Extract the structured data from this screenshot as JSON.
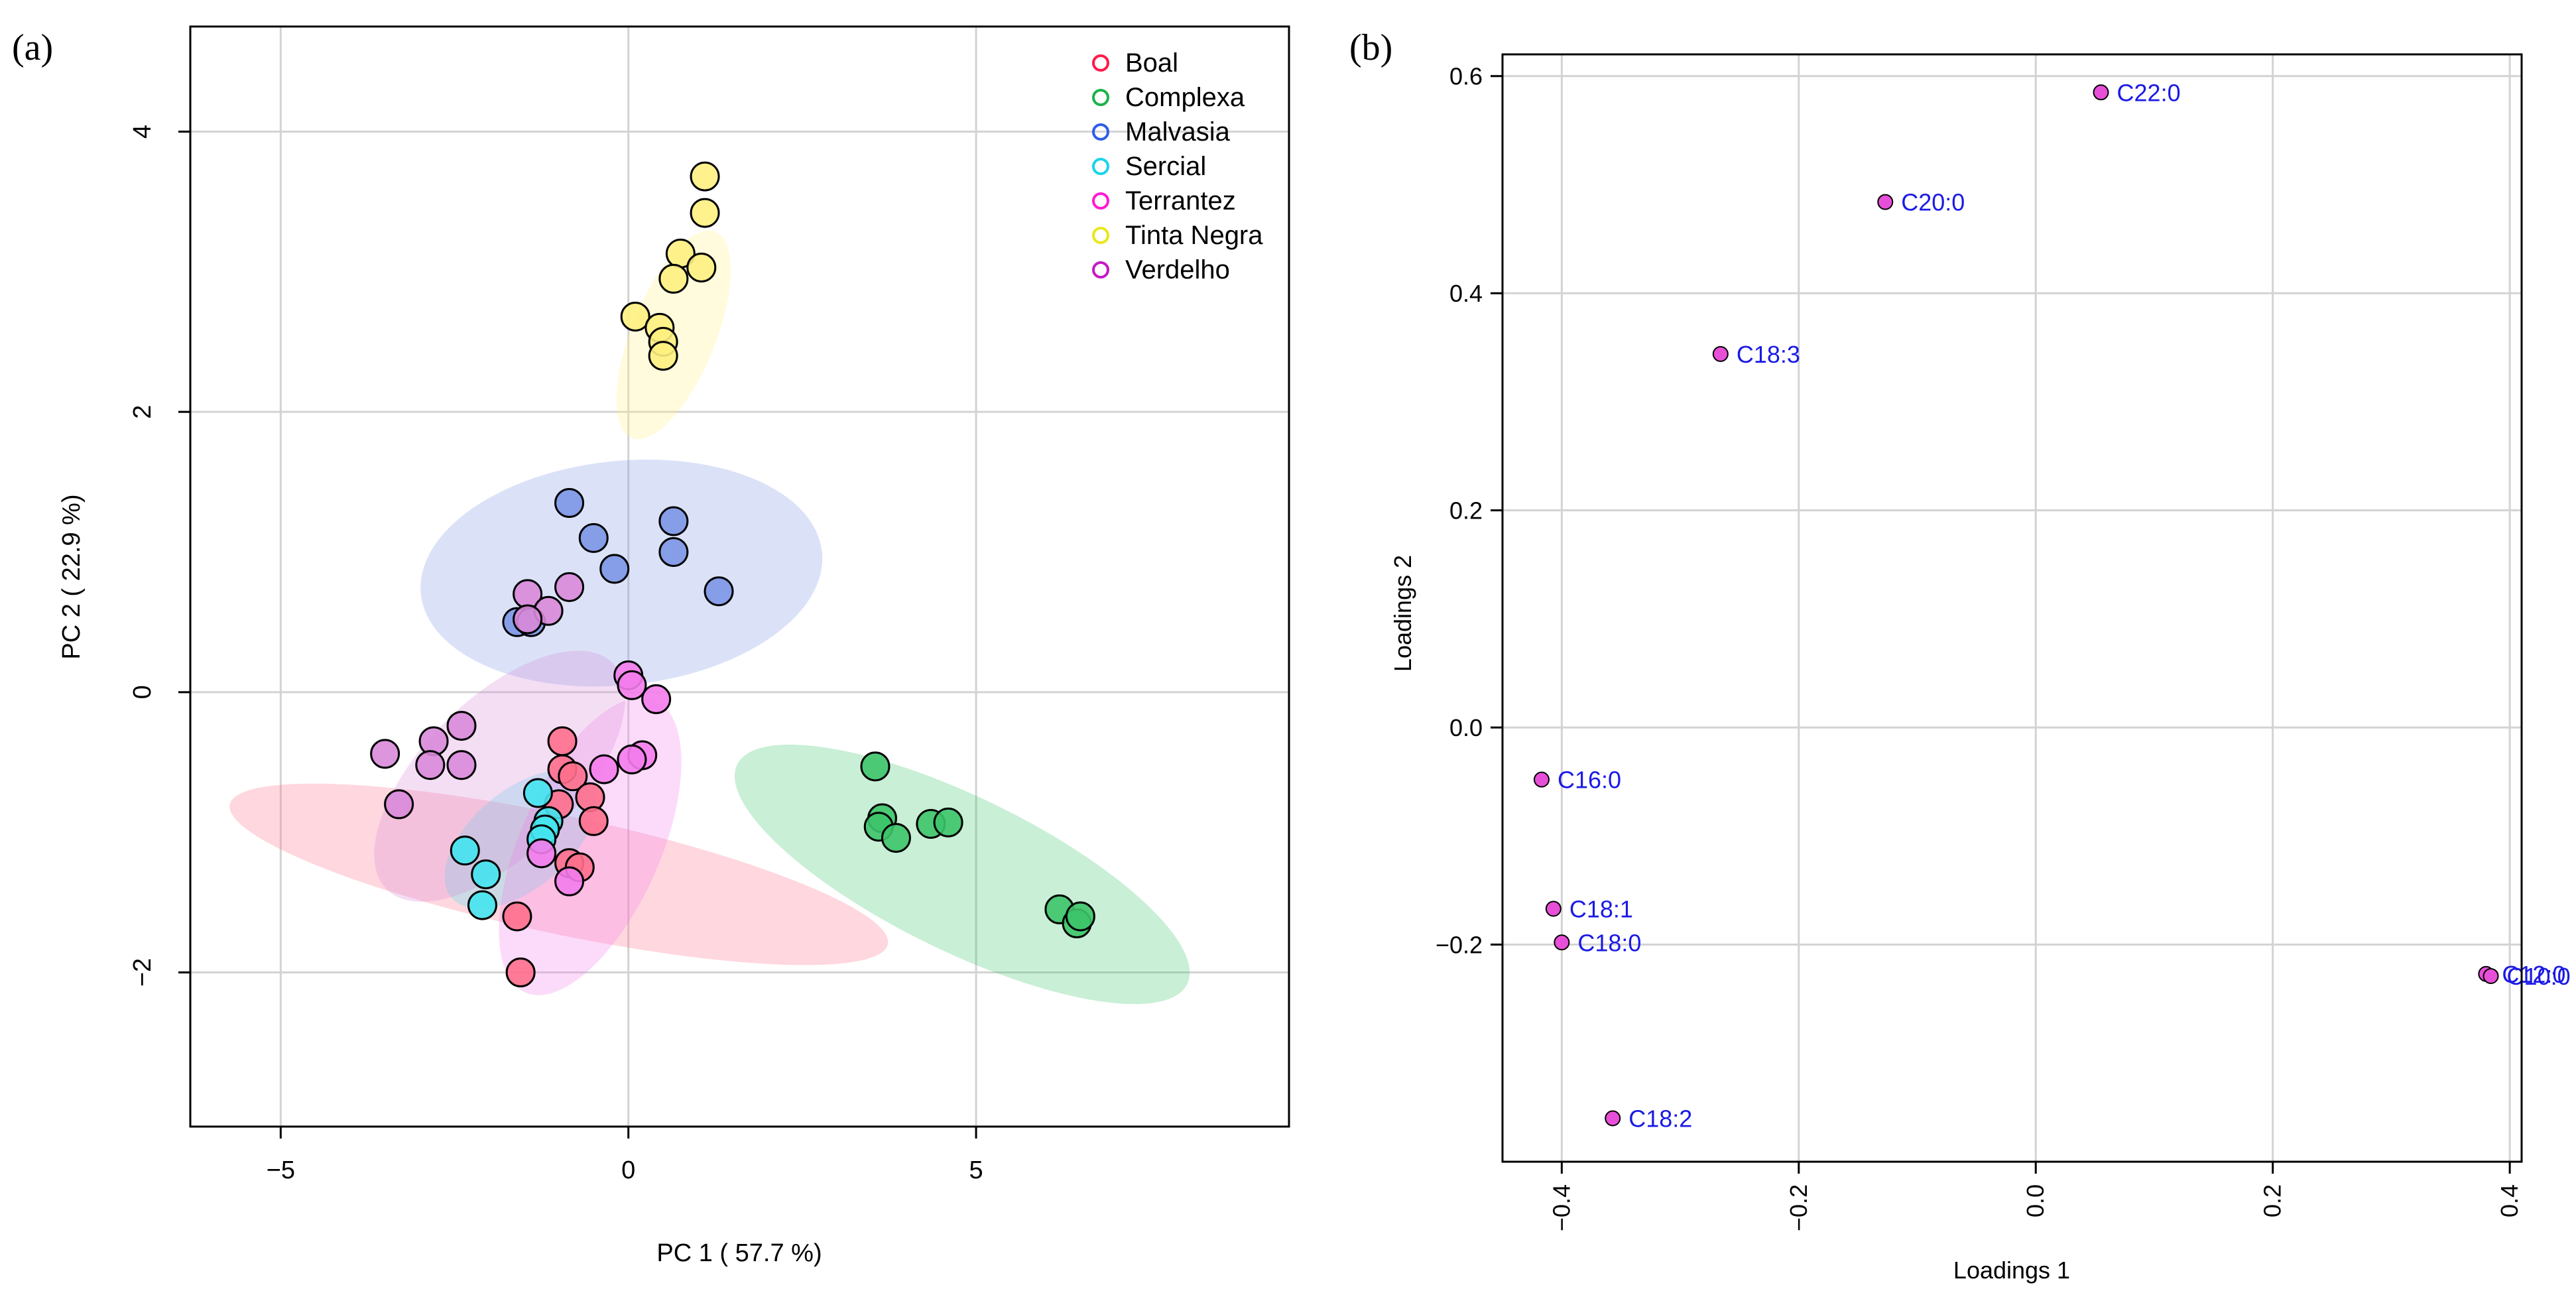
{
  "chart_data": [
    {
      "type": "scatter",
      "panel_label": "(a)",
      "xlabel": "PC 1 ( 57.7 %)",
      "ylabel": "PC 2 ( 22.9 %)",
      "xlim": [
        -6.3,
        9.5
      ],
      "ylim": [
        -3.1,
        4.75
      ],
      "xticks": [
        -5,
        0,
        5
      ],
      "yticks": [
        -2,
        0,
        2,
        4
      ],
      "xtick_labels": [
        "−5",
        "0",
        "5"
      ],
      "ytick_labels": [
        "−2",
        "0",
        "2",
        "4"
      ],
      "grid": true,
      "legend": "top-right",
      "series": [
        {
          "name": "Boal",
          "color": "#ff1a4a",
          "fill": "#ff6f8c",
          "ellipse": {
            "cx": -1.0,
            "cy": -1.3,
            "rx": 0.85,
            "ry": 2.4,
            "angle_deg": 78
          },
          "points": [
            [
              -0.95,
              -0.35
            ],
            [
              -0.95,
              -0.55
            ],
            [
              -0.8,
              -0.6
            ],
            [
              -1.0,
              -0.8
            ],
            [
              -0.55,
              -0.75
            ],
            [
              -0.5,
              -0.92
            ],
            [
              -0.85,
              -1.22
            ],
            [
              -0.7,
              -1.25
            ],
            [
              -1.6,
              -1.6
            ],
            [
              -1.55,
              -2.0
            ]
          ]
        },
        {
          "name": "Complexa",
          "color": "#1ab34a",
          "fill": "#3dc46a",
          "ellipse": {
            "cx": 4.8,
            "cy": -1.3,
            "rx": 3.6,
            "ry": 0.55,
            "angle_deg": -26
          },
          "points": [
            [
              3.55,
              -0.53
            ],
            [
              3.65,
              -0.9
            ],
            [
              3.6,
              -0.96
            ],
            [
              3.85,
              -1.04
            ],
            [
              4.35,
              -0.94
            ],
            [
              4.6,
              -0.93
            ],
            [
              6.2,
              -1.55
            ],
            [
              6.45,
              -1.65
            ],
            [
              6.5,
              -1.6
            ]
          ]
        },
        {
          "name": "Malvasia",
          "color": "#2e5ee8",
          "fill": "#7c96e6",
          "ellipse": {
            "cx": -0.1,
            "cy": 0.85,
            "rx": 2.9,
            "ry": 0.8,
            "angle_deg": 6
          },
          "points": [
            [
              -0.85,
              1.35
            ],
            [
              -0.5,
              1.1
            ],
            [
              -0.2,
              0.88
            ],
            [
              0.65,
              1.22
            ],
            [
              0.65,
              1.0
            ],
            [
              1.3,
              0.72
            ],
            [
              -1.6,
              0.5
            ],
            [
              -1.4,
              0.5
            ]
          ]
        },
        {
          "name": "Sercial",
          "color": "#1ad4e8",
          "fill": "#44e4f0",
          "ellipse": {
            "cx": -1.55,
            "cy": -1.05,
            "rx": 1.3,
            "ry": 0.35,
            "angle_deg": 40
          },
          "points": [
            [
              -1.3,
              -0.72
            ],
            [
              -1.15,
              -0.92
            ],
            [
              -1.2,
              -0.98
            ],
            [
              -1.25,
              -1.05
            ],
            [
              -2.35,
              -1.13
            ],
            [
              -2.05,
              -1.3
            ],
            [
              -2.1,
              -1.52
            ]
          ]
        },
        {
          "name": "Terrantez",
          "color": "#ff1ad4",
          "fill": "#f47cec",
          "ellipse": {
            "cx": -0.55,
            "cy": -1.1,
            "rx": 2.3,
            "ry": 0.5,
            "angle_deg": 66
          },
          "points": [
            [
              0.0,
              0.12
            ],
            [
              0.05,
              0.05
            ],
            [
              0.4,
              -0.05
            ],
            [
              0.2,
              -0.45
            ],
            [
              0.05,
              -0.48
            ],
            [
              -0.35,
              -0.55
            ],
            [
              -1.25,
              -1.15
            ],
            [
              -0.85,
              -1.35
            ]
          ]
        },
        {
          "name": "Tinta Negra",
          "color": "#e8e81a",
          "fill": "#fff080",
          "ellipse": {
            "cx": 0.65,
            "cy": 2.55,
            "rx": 1.6,
            "ry": 0.3,
            "angle_deg": 68
          },
          "points": [
            [
              1.1,
              3.68
            ],
            [
              1.1,
              3.42
            ],
            [
              0.75,
              3.13
            ],
            [
              1.05,
              3.03
            ],
            [
              0.65,
              2.95
            ],
            [
              0.1,
              2.68
            ],
            [
              0.45,
              2.6
            ],
            [
              0.5,
              2.5
            ],
            [
              0.5,
              2.4
            ]
          ]
        },
        {
          "name": "Verdelho",
          "color": "#c41ac4",
          "fill": "#d98ad9",
          "ellipse": {
            "cx": -1.85,
            "cy": -0.6,
            "rx": 2.3,
            "ry": 0.55,
            "angle_deg": 45
          },
          "points": [
            [
              -1.45,
              0.7
            ],
            [
              -0.85,
              0.75
            ],
            [
              -1.15,
              0.58
            ],
            [
              -1.45,
              0.52
            ],
            [
              -2.4,
              -0.24
            ],
            [
              -2.8,
              -0.35
            ],
            [
              -3.5,
              -0.44
            ],
            [
              -2.85,
              -0.52
            ],
            [
              -2.4,
              -0.52
            ],
            [
              -3.3,
              -0.8
            ]
          ]
        }
      ]
    },
    {
      "type": "scatter",
      "panel_label": "(b)",
      "xlabel": "Loadings 1",
      "ylabel": "Loadings 2",
      "xlim": [
        -0.45,
        0.41
      ],
      "ylim": [
        -0.4,
        0.62
      ],
      "xticks": [
        -0.4,
        -0.2,
        0.0,
        0.2,
        0.4
      ],
      "yticks": [
        -0.2,
        0.0,
        0.2,
        0.4,
        0.6
      ],
      "xtick_labels": [
        "−0.4",
        "−0.2",
        "0.0",
        "0.2",
        "0.4"
      ],
      "ytick_labels": [
        "−0.2",
        "0.0",
        "0.2",
        "0.4",
        "0.6"
      ],
      "grid": true,
      "point_color": "#e84fd8",
      "label_color": "#1a1ae6",
      "points": [
        {
          "label": "C22:0",
          "x": 0.055,
          "y": 0.585
        },
        {
          "label": "C20:0",
          "x": -0.127,
          "y": 0.484
        },
        {
          "label": "C18:3",
          "x": -0.266,
          "y": 0.344
        },
        {
          "label": "C16:0",
          "x": -0.417,
          "y": -0.048
        },
        {
          "label": "C18:1",
          "x": -0.407,
          "y": -0.167
        },
        {
          "label": "C18:0",
          "x": -0.4,
          "y": -0.198
        },
        {
          "label": "C18:2",
          "x": -0.357,
          "y": -0.36
        },
        {
          "label": "C12:0",
          "x": 0.38,
          "y": -0.227
        },
        {
          "label": "C10:0",
          "x": 0.384,
          "y": -0.229
        }
      ]
    }
  ]
}
